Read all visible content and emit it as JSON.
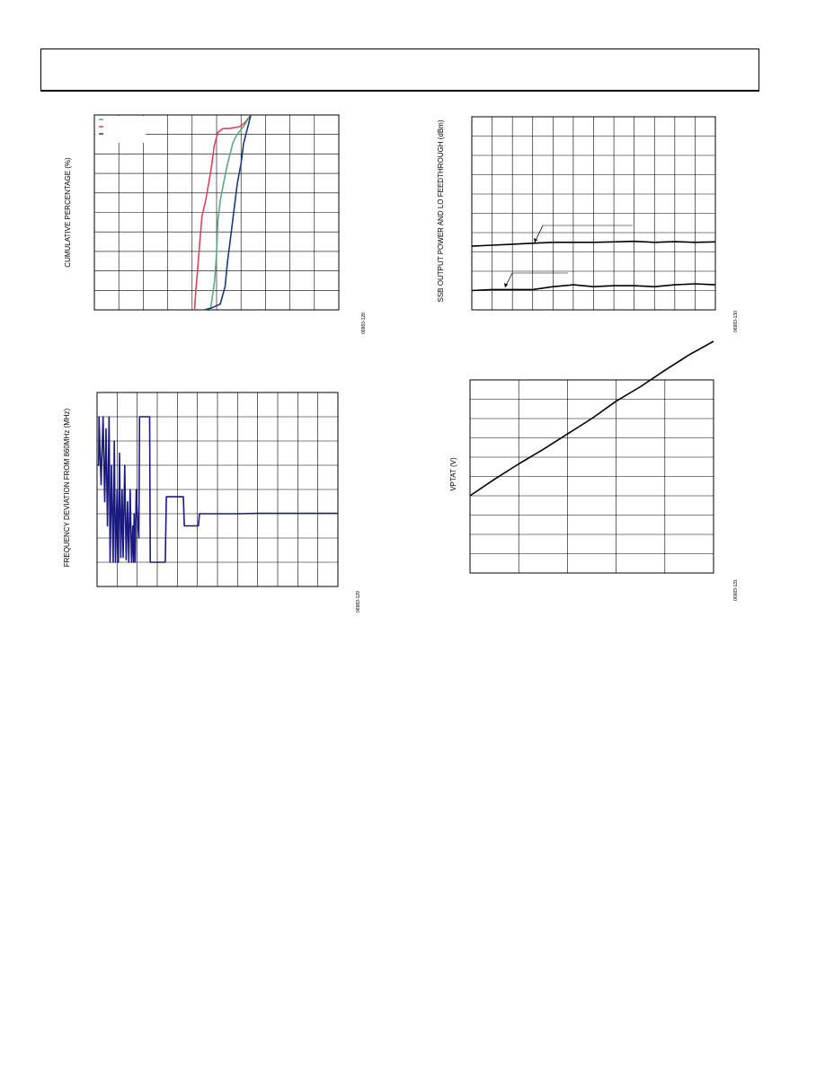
{
  "header": {
    "title": ""
  },
  "charts": {
    "cumulative": {
      "type": "line",
      "ylabel": "CUMULATIVE PERCENTAGE (%)",
      "figure_code": "06983-128",
      "grid": true,
      "x_divisions": 10,
      "y_divisions": 10,
      "legend_colors": [
        "#5aaa7e",
        "#e0405a",
        "#1a3a7a"
      ],
      "series": [
        {
          "color": "#e0405a",
          "points": [
            [
              4.1,
              0
            ],
            [
              4.15,
              1.0
            ],
            [
              4.22,
              2.0
            ],
            [
              4.3,
              3.3
            ],
            [
              4.4,
              4.8
            ],
            [
              4.55,
              5.6
            ],
            [
              4.72,
              6.8
            ],
            [
              4.82,
              7.6
            ],
            [
              4.9,
              8.4
            ],
            [
              5.05,
              9.1
            ],
            [
              5.25,
              9.3
            ],
            [
              5.5,
              9.3
            ],
            [
              5.95,
              9.4
            ],
            [
              6.15,
              9.6
            ],
            [
              6.4,
              10
            ]
          ]
        },
        {
          "color": "#5aaa7e",
          "points": [
            [
              4.75,
              0
            ],
            [
              4.82,
              0.6
            ],
            [
              4.92,
              1.5
            ],
            [
              5.0,
              2.9
            ],
            [
              5.05,
              4.6
            ],
            [
              5.15,
              5.6
            ],
            [
              5.3,
              6.6
            ],
            [
              5.45,
              7.5
            ],
            [
              5.55,
              8.0
            ],
            [
              5.65,
              8.5
            ],
            [
              5.75,
              8.8
            ],
            [
              5.9,
              9.1
            ],
            [
              6.1,
              9.4
            ],
            [
              6.4,
              10
            ]
          ]
        },
        {
          "color": "#1a3a7a",
          "points": [
            [
              4.5,
              0
            ],
            [
              4.8,
              0.1
            ],
            [
              5.15,
              0.3
            ],
            [
              5.35,
              1.2
            ],
            [
              5.45,
              2.5
            ],
            [
              5.55,
              3.5
            ],
            [
              5.65,
              4.5
            ],
            [
              5.75,
              5.5
            ],
            [
              5.85,
              6.5
            ],
            [
              6.0,
              7.5
            ],
            [
              6.1,
              8.5
            ],
            [
              6.2,
              9.0
            ],
            [
              6.3,
              9.5
            ],
            [
              6.4,
              10
            ]
          ]
        }
      ]
    },
    "ssb": {
      "type": "line",
      "ylabel": "SSB OUTPUT POWER AND LO FEEDTHROUGH (dBm)",
      "figure_code": "06983-130",
      "grid": true,
      "x_divisions": 12,
      "y_divisions": 10,
      "series": [
        {
          "color": "#000000",
          "points": [
            [
              0,
              3.3
            ],
            [
              1,
              3.35
            ],
            [
              2,
              3.4
            ],
            [
              3,
              3.45
            ],
            [
              4,
              3.5
            ],
            [
              5,
              3.5
            ],
            [
              6,
              3.5
            ],
            [
              7,
              3.52
            ],
            [
              8,
              3.55
            ],
            [
              9,
              3.5
            ],
            [
              10,
              3.53
            ],
            [
              11,
              3.5
            ],
            [
              12,
              3.52
            ]
          ]
        },
        {
          "color": "#000000",
          "points": [
            [
              0,
              1.0
            ],
            [
              1,
              1.05
            ],
            [
              2,
              1.05
            ],
            [
              3,
              1.05
            ],
            [
              4,
              1.2
            ],
            [
              5,
              1.3
            ],
            [
              6,
              1.2
            ],
            [
              7,
              1.25
            ],
            [
              8,
              1.25
            ],
            [
              9,
              1.2
            ],
            [
              10,
              1.3
            ],
            [
              11,
              1.35
            ],
            [
              12,
              1.3
            ]
          ]
        }
      ]
    },
    "freqdev": {
      "type": "line",
      "ylabel": "FREQUENCY DEVIATION FROM 860MHz (MHz)",
      "figure_code": "06983-129",
      "grid": true,
      "x_divisions": 12,
      "y_divisions": 8,
      "series": [
        {
          "color": "#1a1a80",
          "points": [
            [
              0,
              5.0
            ],
            [
              0.08,
              5.0
            ],
            [
              0.1,
              7.0
            ],
            [
              0.2,
              4.2
            ],
            [
              0.3,
              7.0
            ],
            [
              0.38,
              3.5
            ],
            [
              0.45,
              6.5
            ],
            [
              0.52,
              2.5
            ],
            [
              0.6,
              7.0
            ],
            [
              0.65,
              1.0
            ],
            [
              0.72,
              5.0
            ],
            [
              0.8,
              1.0
            ],
            [
              0.86,
              6.0
            ],
            [
              0.92,
              1.0
            ],
            [
              1.0,
              4.0
            ],
            [
              1.06,
              1.0
            ],
            [
              1.12,
              5.5
            ],
            [
              1.18,
              1.2
            ],
            [
              1.25,
              4.0
            ],
            [
              1.3,
              1.2
            ],
            [
              1.38,
              5.0
            ],
            [
              1.45,
              1.1
            ],
            [
              1.52,
              3.5
            ],
            [
              1.58,
              1.0
            ],
            [
              1.65,
              4.0
            ],
            [
              1.72,
              1.0
            ],
            [
              1.78,
              2.5
            ],
            [
              1.82,
              1.0
            ],
            [
              1.85,
              3.0
            ],
            [
              1.9,
              1.0
            ],
            [
              1.95,
              4.0
            ],
            [
              2.0,
              3.0
            ],
            [
              2.08,
              2.0
            ],
            [
              2.12,
              7.0
            ],
            [
              2.5,
              7.0
            ],
            [
              2.62,
              7.0
            ],
            [
              2.65,
              1.0
            ],
            [
              3.4,
              1.0
            ],
            [
              3.45,
              3.7
            ],
            [
              4.3,
              3.7
            ],
            [
              4.35,
              2.5
            ],
            [
              5.05,
              2.5
            ],
            [
              5.1,
              3.0
            ],
            [
              7.0,
              3.0
            ],
            [
              8.0,
              3.02
            ],
            [
              12,
              3.02
            ]
          ]
        }
      ]
    },
    "vptat": {
      "type": "line",
      "ylabel": "VPTAT (V)",
      "figure_code": "06983-131",
      "grid": true,
      "x_divisions": 5,
      "y_divisions": 10,
      "series": [
        {
          "color": "#000000",
          "points": [
            [
              0,
              4.0
            ],
            [
              0.5,
              4.85
            ],
            [
              1,
              5.65
            ],
            [
              1.5,
              6.4
            ],
            [
              2,
              7.2
            ],
            [
              2.5,
              8.0
            ],
            [
              3,
              8.9
            ],
            [
              3.5,
              9.65
            ],
            [
              4,
              10.5
            ],
            [
              4.5,
              11.3
            ],
            [
              5,
              12.0
            ]
          ]
        }
      ]
    }
  }
}
